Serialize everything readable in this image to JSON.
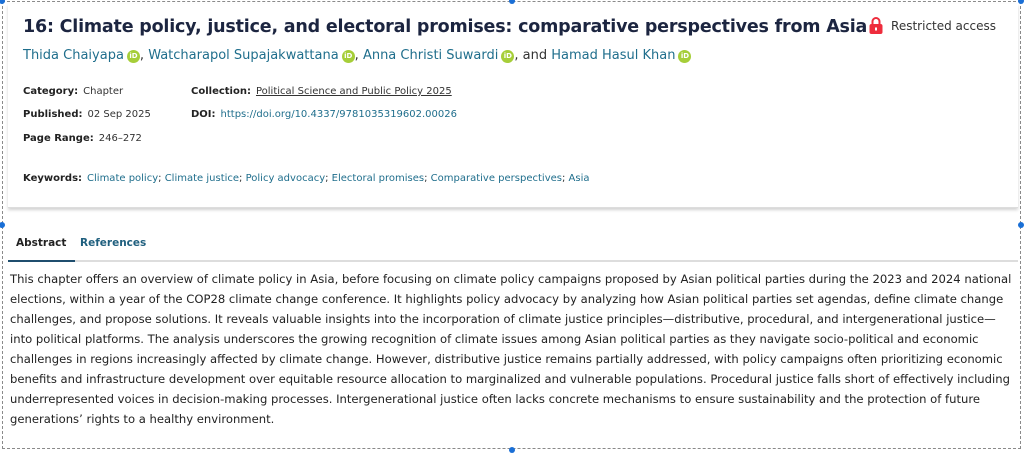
{
  "chapter": {
    "title": "16: Climate policy, justice, and electoral promises: comparative perspectives from Asia",
    "access": {
      "label": "Restricted access",
      "icon": "lock-icon",
      "color": "#ee2c3c"
    },
    "authors": [
      {
        "name": "Thida Chaiyapa",
        "sep": ", "
      },
      {
        "name": "Watcharapol Supajakwattana",
        "sep": ", "
      },
      {
        "name": "Anna Christi Suwardi",
        "sep": ", and "
      },
      {
        "name": "Hamad Hasul Khan",
        "sep": ""
      }
    ],
    "orcid_label": "iD",
    "meta": {
      "category_label": "Category:",
      "category": "Chapter",
      "published_label": "Published:",
      "published": "02 Sep 2025",
      "page_range_label": "Page Range:",
      "page_range": "246–272",
      "collection_label": "Collection:",
      "collection": "Political Science and Public Policy 2025",
      "doi_label": "DOI:",
      "doi": "https://doi.org/10.4337/9781035319602.00026"
    },
    "keywords_label": "Keywords:",
    "keywords": [
      "Climate policy",
      "Climate justice",
      "Policy advocacy",
      "Electoral promises",
      "Comparative perspectives",
      "Asia"
    ]
  },
  "tabs": [
    {
      "label": "Abstract",
      "active": true
    },
    {
      "label": "References",
      "active": false
    }
  ],
  "abstract": "This chapter offers an overview of climate policy in Asia, before focusing on climate policy campaigns proposed by Asian political parties during the 2023 and 2024 national elections, within a year of the COP28 climate change conference. It highlights policy advocacy by analyzing how Asian political parties set agendas, define climate change challenges, and propose solutions. It reveals valuable insights into the incorporation of climate justice principles—distributive, procedural, and intergenerational justice—into political platforms. The analysis underscores the growing recognition of climate issues among Asian political parties as they navigate socio-political and economic challenges in regions increasingly affected by climate change. However, distributive justice remains partially addressed, with policy campaigns often prioritizing economic benefits and infrastructure development over equitable resource allocation to marginalized and vulnerable populations. Procedural justice falls short of effectively including underrepresented voices in decision-making processes. Intergenerational justice often lacks concrete mechanisms to ensure sustainability and the protection of future generations’ rights to a healthy environment."
}
